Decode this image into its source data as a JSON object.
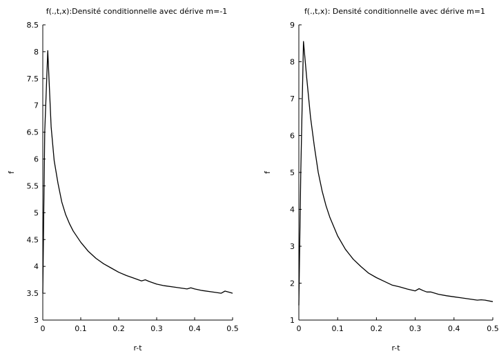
{
  "chart_data": [
    {
      "type": "line",
      "title": "f(.,t,x):Densité conditionnelle avec dérive m=-1",
      "xlabel": "r-t",
      "ylabel": "f",
      "xlim": [
        0,
        0.5
      ],
      "ylim": [
        3,
        8.5
      ],
      "xticks": [
        "0",
        "0.1",
        "0.2",
        "0.3",
        "0.4",
        "0.5"
      ],
      "yticks": [
        "3",
        "3.5",
        "4",
        "4.5",
        "5",
        "5.5",
        "6",
        "6.5",
        "7",
        "7.5",
        "8",
        "8.5"
      ],
      "grid": false,
      "series": [
        {
          "x": [
            0.0,
            0.005,
            0.013,
            0.022,
            0.03,
            0.04,
            0.05,
            0.06,
            0.07,
            0.08,
            0.1,
            0.12,
            0.14,
            0.16,
            0.18,
            0.2,
            0.22,
            0.24,
            0.26,
            0.27,
            0.28,
            0.3,
            0.32,
            0.35,
            0.38,
            0.39,
            0.4,
            0.42,
            0.45,
            0.47,
            0.48,
            0.49,
            0.5
          ],
          "values": [
            3.5,
            6.5,
            8.02,
            6.6,
            5.97,
            5.55,
            5.2,
            4.97,
            4.8,
            4.66,
            4.45,
            4.28,
            4.15,
            4.05,
            3.97,
            3.89,
            3.83,
            3.78,
            3.73,
            3.75,
            3.72,
            3.67,
            3.64,
            3.61,
            3.58,
            3.6,
            3.58,
            3.55,
            3.52,
            3.5,
            3.54,
            3.52,
            3.5
          ]
        }
      ]
    },
    {
      "type": "line",
      "title": "f(.,t,x): Densité conditionnelle avec dérive m=1",
      "xlabel": "r-t",
      "ylabel": "f",
      "xlim": [
        0,
        0.5
      ],
      "ylim": [
        1,
        9
      ],
      "xticks": [
        "0",
        "0.1",
        "0.2",
        "0.3",
        "0.4",
        "0.5"
      ],
      "yticks": [
        "1",
        "2",
        "3",
        "4",
        "5",
        "6",
        "7",
        "8",
        "9"
      ],
      "grid": false,
      "series": [
        {
          "x": [
            0.0,
            0.005,
            0.012,
            0.02,
            0.03,
            0.04,
            0.05,
            0.06,
            0.07,
            0.08,
            0.1,
            0.12,
            0.14,
            0.16,
            0.18,
            0.2,
            0.22,
            0.24,
            0.26,
            0.28,
            0.3,
            0.31,
            0.32,
            0.33,
            0.34,
            0.36,
            0.38,
            0.4,
            0.42,
            0.44,
            0.46,
            0.47,
            0.48,
            0.5
          ],
          "values": [
            1.4,
            5.0,
            8.55,
            7.6,
            6.5,
            5.7,
            5.0,
            4.5,
            4.1,
            3.78,
            3.28,
            2.92,
            2.65,
            2.45,
            2.27,
            2.15,
            2.05,
            1.95,
            1.9,
            1.84,
            1.79,
            1.85,
            1.8,
            1.76,
            1.76,
            1.7,
            1.66,
            1.63,
            1.6,
            1.57,
            1.54,
            1.55,
            1.54,
            1.5
          ]
        }
      ]
    }
  ]
}
